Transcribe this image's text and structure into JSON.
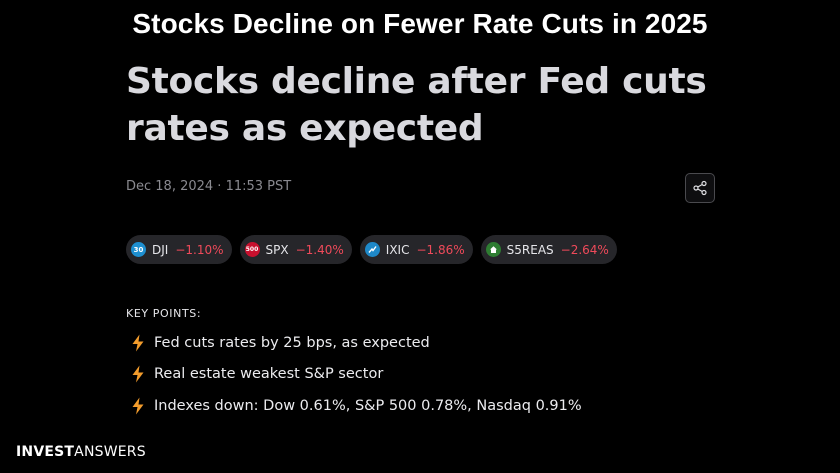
{
  "banner": {
    "title": "Stocks Decline on Fewer Rate Cuts in 2025"
  },
  "article": {
    "headline_line1": "Stocks decline after Fed cuts",
    "headline_line2": "rates as expected",
    "dateline": "Dec 18, 2024 · 11:53 PST"
  },
  "share": {
    "icon": "share-icon"
  },
  "tickers": [
    {
      "icon_text": "30",
      "icon_color": "#1e8fd0",
      "symbol": "DJI",
      "change": "−1.10%"
    },
    {
      "icon_text": "500",
      "icon_color": "#c8102e",
      "symbol": "SPX",
      "change": "−1.40%"
    },
    {
      "icon_text": "",
      "icon_color": "#1e88c8",
      "symbol": "IXIC",
      "change": "−1.86%"
    },
    {
      "icon_text": "",
      "icon_color": "#2e7d32",
      "symbol": "S5REAS",
      "change": "−2.64%"
    }
  ],
  "key_points": {
    "title": "KEY POINTS:",
    "items": [
      "Fed cuts rates by 25 bps, as expected",
      "Real estate weakest S&P sector",
      "Indexes down: Dow 0.61%, S&P 500 0.78%, Nasdaq 0.91%"
    ]
  },
  "logo": {
    "part1": "INVEST",
    "part2": "ANSWERS"
  },
  "colors": {
    "negative": "#ef4a5a",
    "bolt": "#f39c2c",
    "background": "#000000"
  }
}
